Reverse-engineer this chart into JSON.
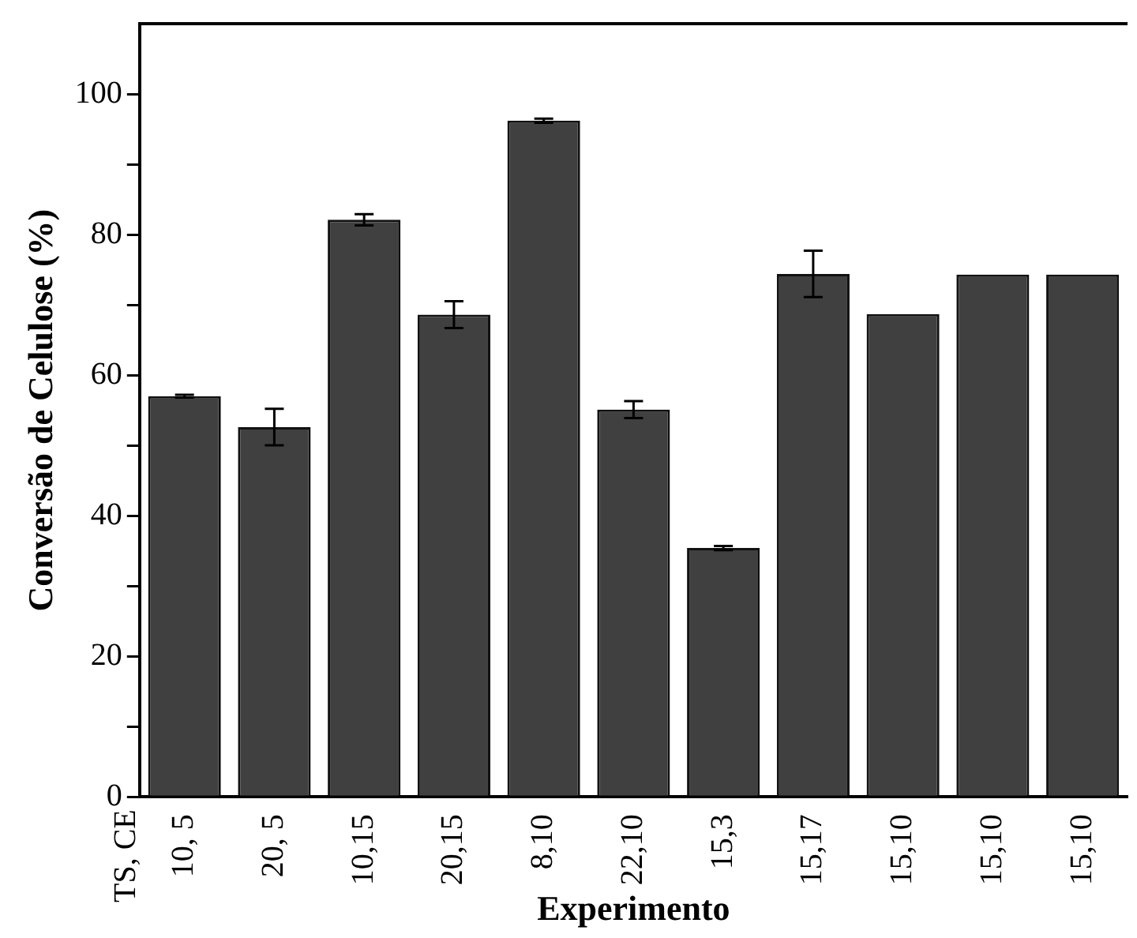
{
  "chart_data": {
    "type": "bar",
    "xlabel": "Experimento",
    "ylabel": "Conversão de Celulose (%)",
    "categories": [
      "10, 5",
      "20, 5",
      "10,15",
      "20,15",
      "8,10",
      "22,10",
      "15,3",
      "15,17",
      "15,10",
      "15,10",
      "15,10"
    ],
    "values": [
      57.0,
      52.6,
      82.1,
      68.6,
      96.2,
      55.1,
      35.4,
      74.4,
      68.7,
      74.3,
      74.3
    ],
    "errors": [
      0.2,
      2.6,
      0.8,
      1.9,
      0.3,
      1.2,
      0.3,
      3.3,
      null,
      null,
      null
    ],
    "color": "#404040",
    "ylim": [
      0,
      110
    ],
    "yticks": [
      0,
      {
        "value": 10,
        "label": null
      },
      20,
      {
        "value": 30,
        "label": null
      },
      40,
      {
        "value": 50,
        "label": null
      },
      60,
      {
        "value": 70,
        "label": null
      },
      80,
      {
        "value": 90,
        "label": null
      },
      100
    ],
    "annotations": [
      "TS, CE"
    ],
    "grid": false,
    "legend": false
  }
}
